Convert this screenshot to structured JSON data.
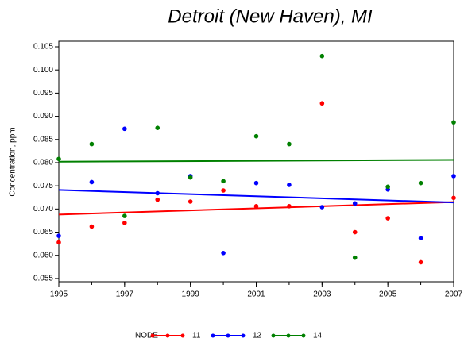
{
  "chart_data": {
    "type": "scatter",
    "title": "Detroit (New Haven), MI",
    "y_label": "Concentration, ppm",
    "legend_title": "NODE",
    "x": [
      1995,
      1996,
      1997,
      1998,
      1999,
      2000,
      2001,
      2002,
      2003,
      2004,
      2005,
      2006,
      2007
    ],
    "series": [
      {
        "name": "11",
        "color": "#ff0000",
        "values": [
          0.0628,
          0.0662,
          0.067,
          0.072,
          0.0716,
          0.074,
          0.0706,
          0.0706,
          0.0928,
          0.065,
          0.068,
          0.0585,
          0.0724
        ],
        "trend": [
          0.0688,
          0.0715
        ]
      },
      {
        "name": "12",
        "color": "#0000ff",
        "values": [
          0.0642,
          0.0758,
          0.0873,
          0.0734,
          0.0771,
          0.0605,
          0.0756,
          0.0752,
          0.0704,
          0.0712,
          0.0742,
          0.0637,
          0.0771
        ],
        "trend": [
          0.0741,
          0.0714
        ]
      },
      {
        "name": "14",
        "color": "#008000",
        "values": [
          0.0808,
          0.084,
          0.0685,
          0.0875,
          0.0768,
          0.076,
          0.0857,
          0.084,
          0.103,
          0.0595,
          0.0748,
          0.0756,
          0.0887
        ],
        "trend": [
          0.0802,
          0.0806
        ]
      }
    ],
    "xlim": [
      1995,
      2007
    ],
    "xticks": [
      1995,
      1997,
      1999,
      2001,
      2003,
      2005,
      2007
    ],
    "ylim": [
      0.0543,
      0.1062
    ],
    "yticks": [
      0.055,
      {
        "value": 0.06,
        "label": "0.060"
      },
      0.065,
      {
        "value": 0.07,
        "label": "0.070"
      },
      0.075,
      {
        "value": 0.08,
        "label": "0.080"
      },
      0.085,
      {
        "value": 0.09,
        "label": "0.090"
      },
      0.095,
      {
        "value": 0.1,
        "label": "0.100"
      },
      0.105
    ],
    "legend_position": "bottom"
  }
}
